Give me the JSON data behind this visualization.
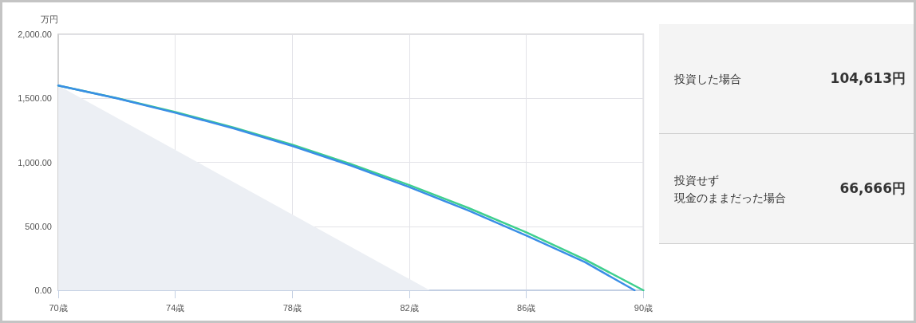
{
  "chart_data": [
    {
      "type": "line",
      "ylabel": "万円",
      "grid": true,
      "marker": "none",
      "line_style": "solid",
      "xlim": [
        70,
        90
      ],
      "xticks": [
        {
          "value": 70,
          "label": "70歳"
        },
        {
          "value": 74,
          "label": "74歳"
        },
        {
          "value": 78,
          "label": "78歳"
        },
        {
          "value": 82,
          "label": "82歳"
        },
        {
          "value": 86,
          "label": "86歳"
        },
        {
          "value": 90,
          "label": "90歳"
        }
      ],
      "ylim": [
        0,
        2000
      ],
      "yticks": [
        {
          "value": 0,
          "label": "0.00"
        },
        {
          "value": 500,
          "label": "500.00"
        },
        {
          "value": 1000,
          "label": "1,000.00"
        },
        {
          "value": 1500,
          "label": "1,500.00"
        },
        {
          "value": 2000,
          "label": "2,000.00"
        }
      ],
      "series": [
        {
          "type": "area",
          "color": "#eceff4",
          "x": [
            70,
            82.7
          ],
          "values": [
            1600,
            0
          ]
        },
        {
          "type": "line",
          "color": "#3ecf8e",
          "x": [
            70,
            72,
            74,
            76,
            78,
            80,
            82,
            84,
            86,
            88,
            90
          ],
          "values": [
            1600,
            1502,
            1393,
            1272,
            1138,
            987,
            822,
            645,
            453,
            240,
            0
          ]
        },
        {
          "type": "line",
          "color": "#3a8ee6",
          "x": [
            70,
            72,
            74,
            76,
            78,
            80,
            82,
            84,
            86,
            88,
            89.7
          ],
          "values": [
            1600,
            1500,
            1387,
            1265,
            1128,
            975,
            806,
            625,
            428,
            220,
            0
          ]
        }
      ]
    },
    {
      "type": "other",
      "annotations": [
        "投資した場合",
        "104,613円",
        "投資せず",
        "現金のままだった場合",
        "66,666円"
      ]
    }
  ]
}
